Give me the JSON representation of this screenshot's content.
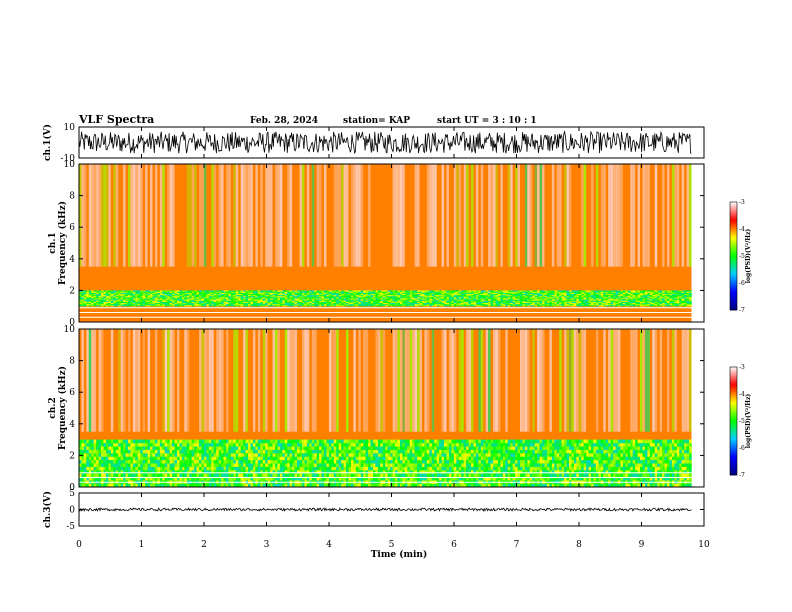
{
  "header": {
    "title": "VLF Spectra",
    "date": "Feb. 28, 2024",
    "station": "station= KAP",
    "start": "start  UT  =   3 : 10 : 1"
  },
  "chart_data": [
    {
      "type": "line",
      "name": "waveform",
      "ylabel": "ch.1(V)",
      "ylim": [
        -10,
        10
      ],
      "yticks": [
        "10",
        "-10"
      ],
      "xlim": [
        0,
        10
      ],
      "data_end_min": 9.8,
      "amplitude_range": [
        -7,
        7
      ]
    },
    {
      "type": "heatmap",
      "ylabel": "ch.1\nFrequency (kHz)",
      "xlim": [
        0,
        10
      ],
      "ylim": [
        0,
        10
      ],
      "yticks": [
        "0",
        "2",
        "4",
        "6",
        "8",
        "10"
      ],
      "colorbar": {
        "label": "log(PSD)(V²/Hz)",
        "range": [
          -7,
          -3
        ],
        "ticks": [
          "-3",
          "-4",
          "-5",
          "-6",
          "-7"
        ],
        "colors": [
          "#000080",
          "#0000ff",
          "#00ccff",
          "#00ff00",
          "#ffff00",
          "#ff0000",
          "#ffffff"
        ]
      },
      "dominant_level": -4,
      "low_band_khz": [
        1,
        2
      ]
    },
    {
      "type": "heatmap",
      "ylabel": "ch.2\nFrequency (kHz)",
      "xlim": [
        0,
        10
      ],
      "ylim": [
        0,
        10
      ],
      "yticks": [
        "0",
        "2",
        "4",
        "6",
        "8",
        "10"
      ],
      "colorbar": {
        "label": "log(PSD)(V²/Hz)",
        "range": [
          -7,
          -3
        ],
        "ticks": [
          "-3",
          "-4",
          "-5",
          "-6",
          "-7"
        ],
        "colors": [
          "#000080",
          "#0000ff",
          "#00ccff",
          "#00ff00",
          "#ffff00",
          "#ff0000",
          "#ffffff"
        ]
      },
      "dominant_level": -4,
      "low_band_khz": [
        0,
        3
      ]
    },
    {
      "type": "line",
      "name": "waveform",
      "ylabel": "ch.3(V)",
      "ylim": [
        -5,
        5
      ],
      "yticks": [
        "5",
        "0",
        "-5"
      ],
      "xlim": [
        0,
        10
      ],
      "data_end_min": 9.8,
      "amplitude_range": [
        -0.4,
        0.4
      ]
    }
  ],
  "xaxis": {
    "label": "Time (min)",
    "ticks": [
      "0",
      "1",
      "2",
      "3",
      "4",
      "5",
      "6",
      "7",
      "8",
      "9",
      "10"
    ]
  }
}
